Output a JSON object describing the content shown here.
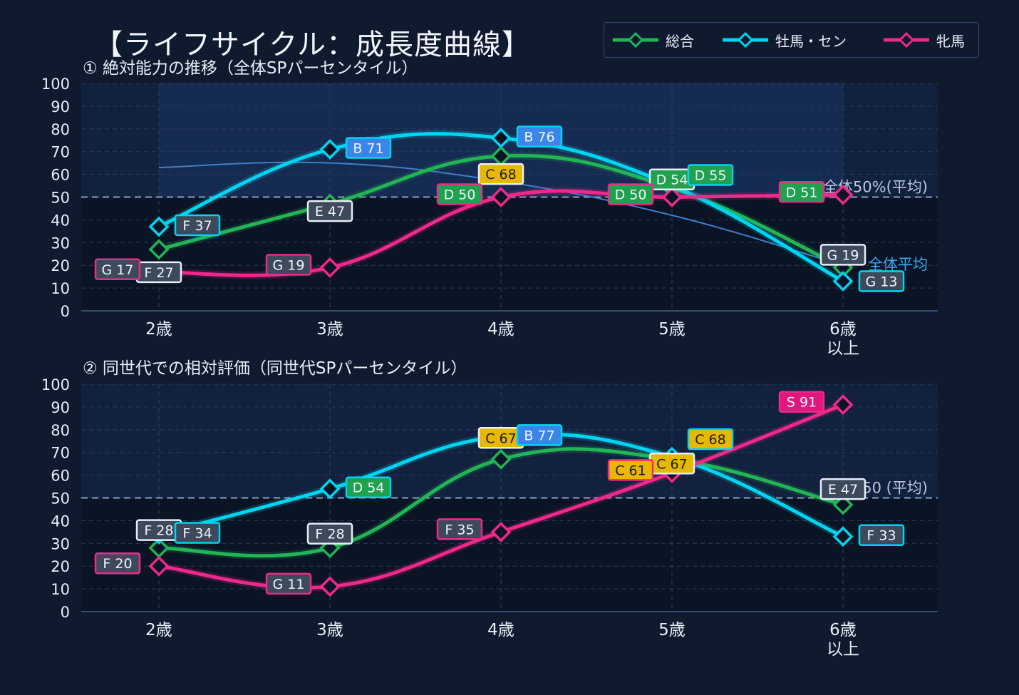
{
  "title": "【ライフサイクル：成長度曲線】",
  "legend": [
    {
      "name": "総合",
      "color": "#22b455"
    },
    {
      "name": "牡馬・セン",
      "color": "#00d4f0"
    },
    {
      "name": "牝馬",
      "color": "#f0288a"
    }
  ],
  "chart_data": [
    {
      "type": "line",
      "title": "① 絶対能力の推移（全体SPパーセンタイル）",
      "categories": [
        "2歳",
        "3歳",
        "4歳",
        "5歳",
        "6歳\n以上"
      ],
      "ylim": [
        0,
        100
      ],
      "yticks": [
        0,
        10,
        20,
        30,
        40,
        50,
        60,
        70,
        80,
        90,
        100
      ],
      "reference_line": {
        "value": 50,
        "label": "全体50%(平均)"
      },
      "average_curve": {
        "label": "全体平均",
        "values": [
          63,
          65,
          57,
          42,
          20
        ]
      },
      "series": [
        {
          "name": "総合",
          "color": "#22b455",
          "values": [
            27,
            47,
            68,
            54,
            19
          ],
          "labels": [
            "F 27",
            "E 47",
            "C 68",
            "D 54",
            "G 19"
          ]
        },
        {
          "name": "牡馬・セン",
          "color": "#00d4f0",
          "values": [
            37,
            71,
            76,
            55,
            13
          ],
          "labels": [
            "F 37",
            "B 71",
            "B 76",
            "D 55",
            "G 13"
          ]
        },
        {
          "name": "牝馬",
          "color": "#f0288a",
          "values": [
            17,
            19,
            50,
            50,
            51
          ],
          "labels": [
            "G 17",
            "G 19",
            "D 50",
            "D 50",
            "D 51"
          ]
        }
      ]
    },
    {
      "type": "line",
      "title": "② 同世代での相対評価（同世代SPパーセンタイル）",
      "categories": [
        "2歳",
        "3歳",
        "4歳",
        "5歳",
        "6歳\n以上"
      ],
      "ylim": [
        0,
        100
      ],
      "yticks": [
        0,
        10,
        20,
        30,
        40,
        50,
        60,
        70,
        80,
        90,
        100
      ],
      "reference_line": {
        "value": 50,
        "label": "SP50 (平均)"
      },
      "series": [
        {
          "name": "総合",
          "color": "#22b455",
          "values": [
            28,
            28,
            67,
            67,
            47
          ],
          "labels": [
            "F 28",
            "F 28",
            "C 67",
            "C 67",
            "E 47"
          ]
        },
        {
          "name": "牡馬・セン",
          "color": "#00d4f0",
          "values": [
            34,
            54,
            77,
            68,
            33
          ],
          "labels": [
            "F 34",
            "D 54",
            "B 77",
            "C 68",
            "F 33"
          ]
        },
        {
          "name": "牝馬",
          "color": "#f0288a",
          "values": [
            20,
            11,
            35,
            61,
            91
          ],
          "labels": [
            "F 20",
            "G 11",
            "F 35",
            "C 61",
            "S 91"
          ]
        }
      ]
    }
  ]
}
